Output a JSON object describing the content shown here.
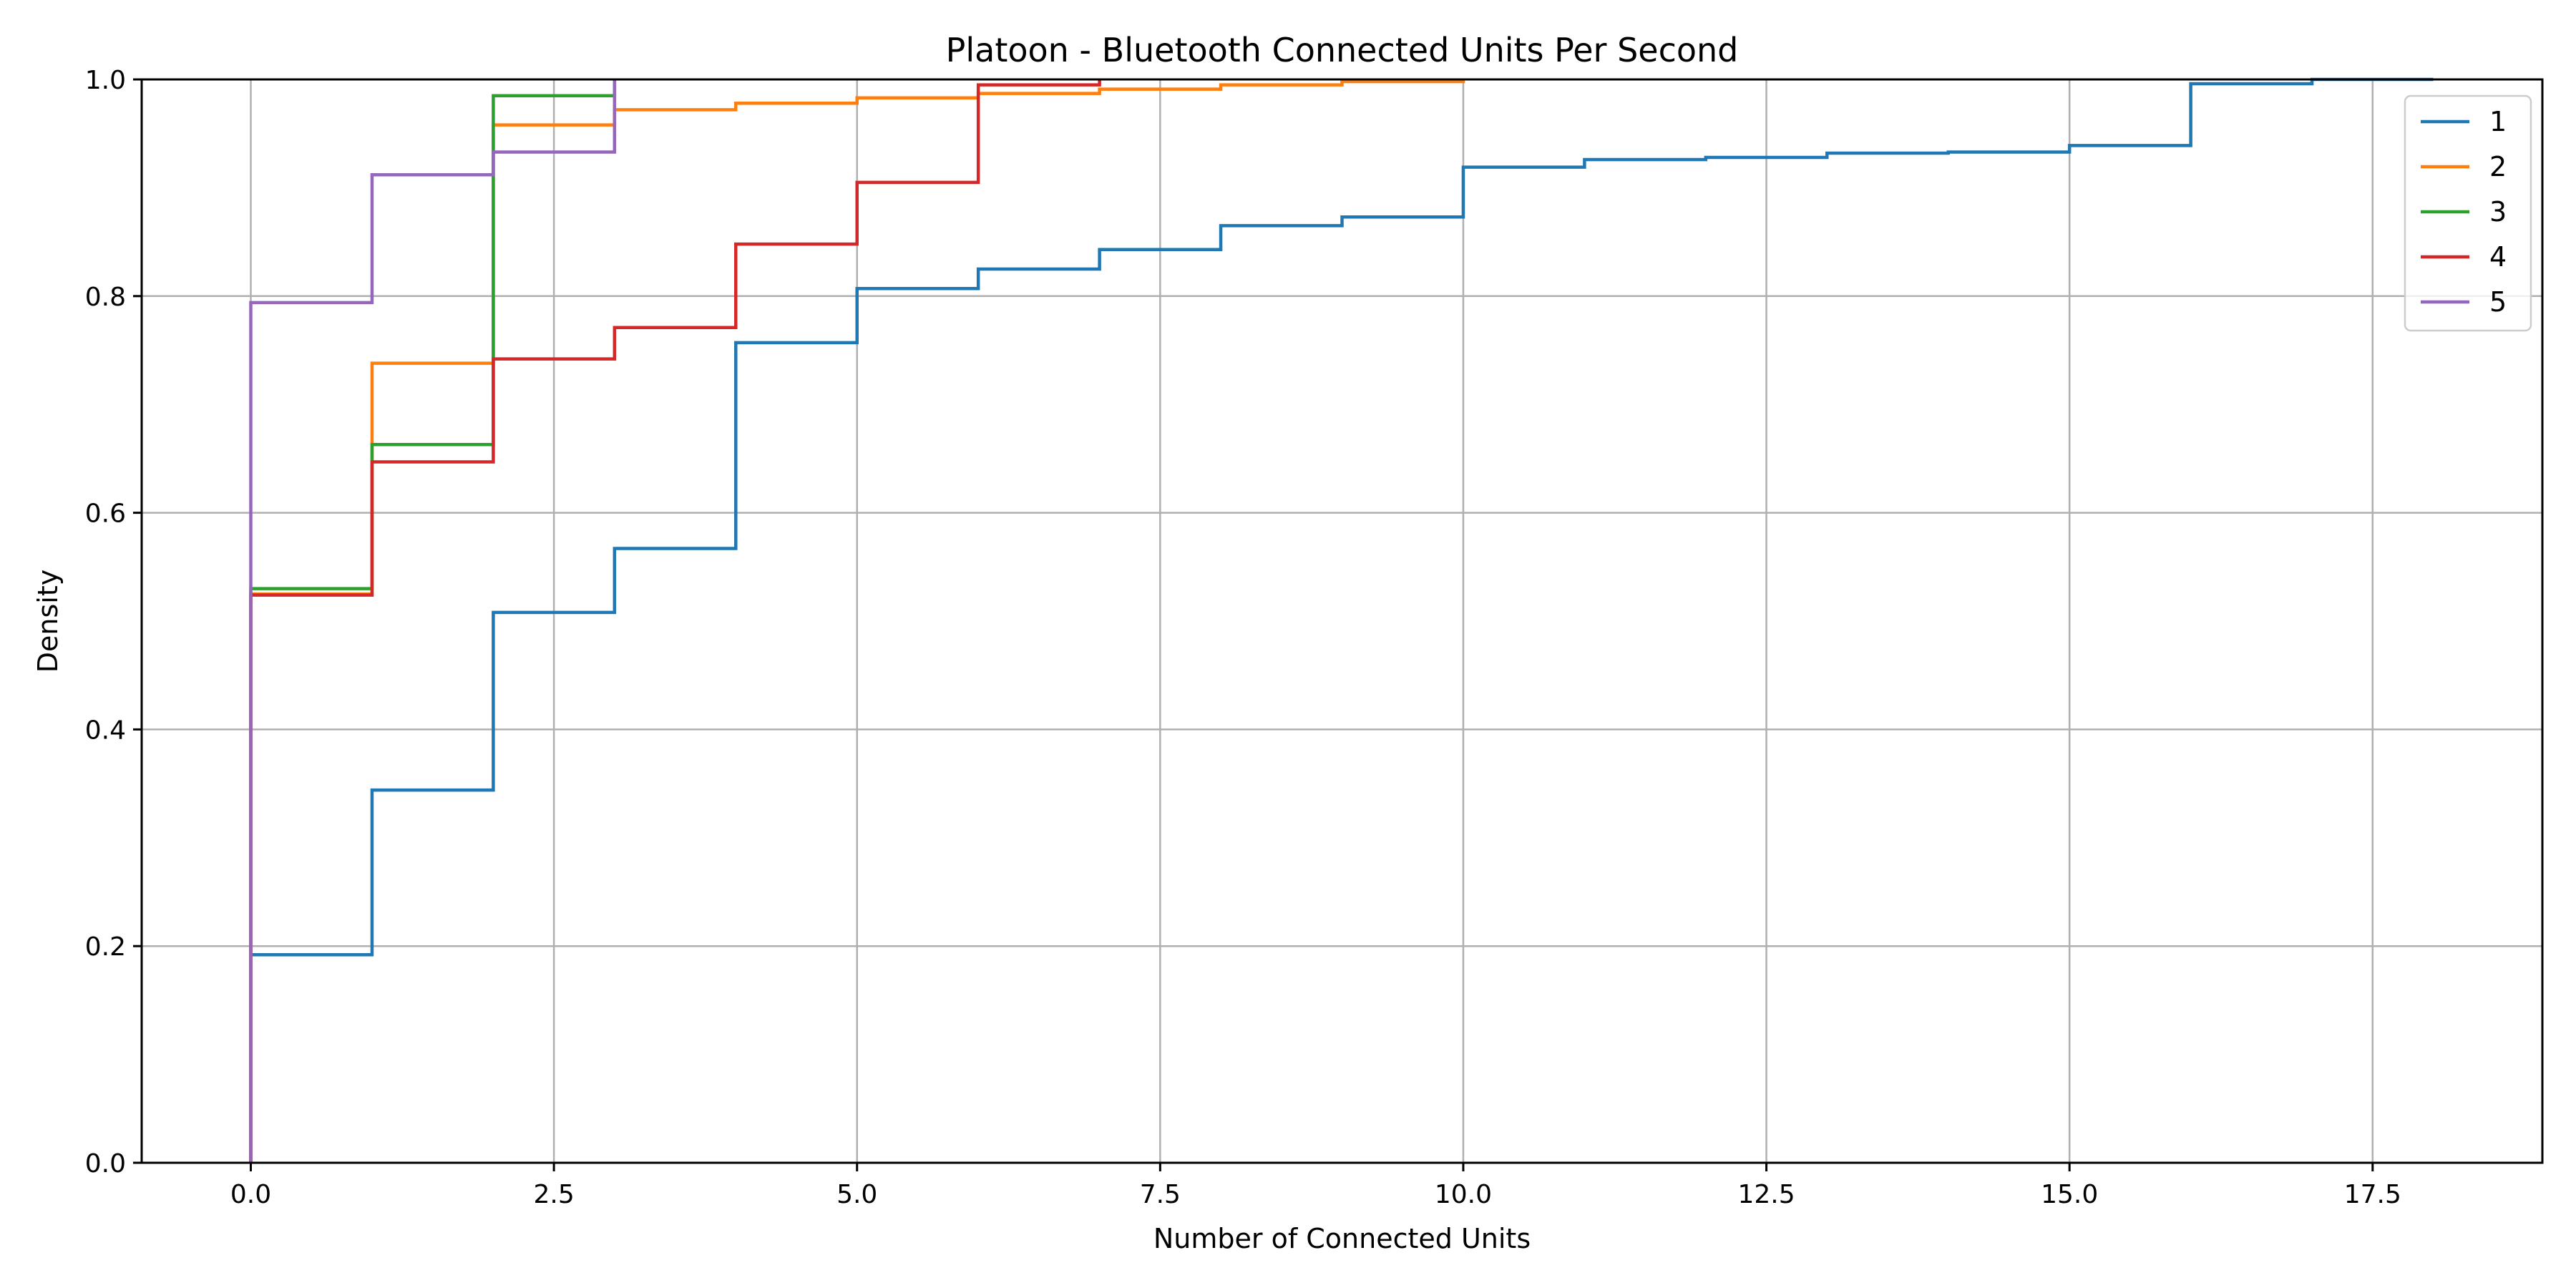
{
  "chart_data": {
    "type": "line",
    "drawstyle": "steps-post",
    "title": "Platoon - Bluetooth Connected Units Per Second",
    "xlabel": "Number of Connected Units",
    "ylabel": "Density",
    "xlim": [
      -0.9,
      18.9
    ],
    "ylim": [
      0.0,
      1.0
    ],
    "xticks": [
      0.0,
      2.5,
      5.0,
      7.5,
      10.0,
      12.5,
      15.0,
      17.5
    ],
    "xtick_labels": [
      "0.0",
      "2.5",
      "5.0",
      "7.5",
      "10.0",
      "12.5",
      "15.0",
      "17.5"
    ],
    "yticks": [
      0.0,
      0.2,
      0.4,
      0.6,
      0.8,
      1.0
    ],
    "ytick_labels": [
      "0.0",
      "0.2",
      "0.4",
      "0.6",
      "0.8",
      "1.0"
    ],
    "grid": true,
    "legend_position": "top-right",
    "series": [
      {
        "name": "1",
        "color": "#1f77b4",
        "x": [
          0,
          1,
          2,
          3,
          4,
          5,
          6,
          7,
          8,
          9,
          10,
          11,
          12,
          13,
          14,
          15,
          16,
          17,
          18
        ],
        "y": [
          0.192,
          0.344,
          0.508,
          0.567,
          0.757,
          0.807,
          0.825,
          0.843,
          0.865,
          0.873,
          0.919,
          0.926,
          0.928,
          0.932,
          0.933,
          0.939,
          0.996,
          1.0,
          1.0
        ]
      },
      {
        "name": "2",
        "color": "#ff7f0e",
        "x": [
          0,
          1,
          2,
          3,
          4,
          5,
          6,
          7,
          8,
          9,
          10
        ],
        "y": [
          0.525,
          0.738,
          0.958,
          0.972,
          0.978,
          0.983,
          0.987,
          0.991,
          0.995,
          0.998,
          1.0
        ]
      },
      {
        "name": "3",
        "color": "#2ca02c",
        "x": [
          0,
          1,
          2,
          3
        ],
        "y": [
          0.53,
          0.663,
          0.985,
          1.0
        ]
      },
      {
        "name": "4",
        "color": "#d62728",
        "x": [
          0,
          1,
          2,
          3,
          4,
          5,
          6,
          7
        ],
        "y": [
          0.524,
          0.647,
          0.742,
          0.771,
          0.848,
          0.905,
          0.995,
          1.0
        ]
      },
      {
        "name": "5",
        "color": "#9467bd",
        "x": [
          0,
          1,
          2,
          3
        ],
        "y": [
          0.794,
          0.912,
          0.933,
          1.0
        ]
      }
    ]
  }
}
